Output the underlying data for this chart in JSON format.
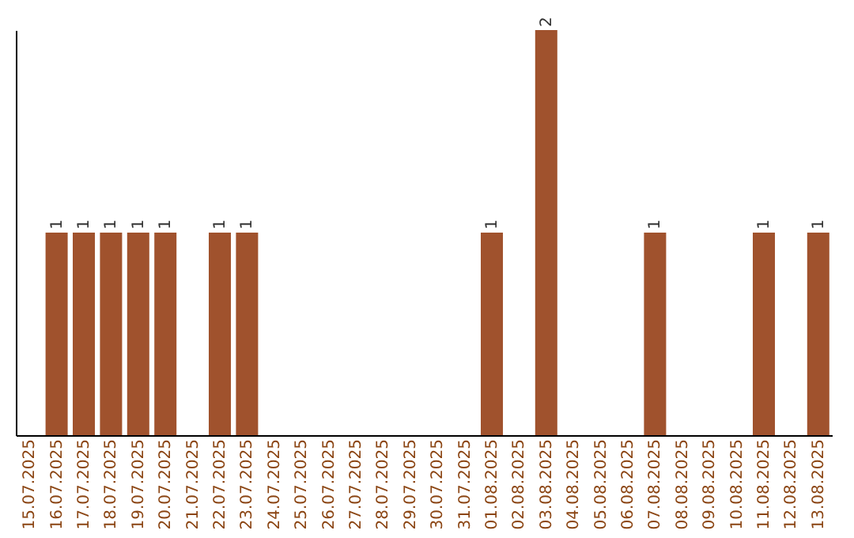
{
  "chart_data": {
    "type": "bar",
    "categories": [
      "15.07.2025",
      "16.07.2025",
      "17.07.2025",
      "18.07.2025",
      "19.07.2025",
      "20.07.2025",
      "21.07.2025",
      "22.07.2025",
      "23.07.2025",
      "24.07.2025",
      "25.07.2025",
      "26.07.2025",
      "27.07.2025",
      "28.07.2025",
      "29.07.2025",
      "30.07.2025",
      "31.07.2025",
      "01.08.2025",
      "02.08.2025",
      "03.08.2025",
      "04.08.2025",
      "05.08.2025",
      "06.08.2025",
      "07.08.2025",
      "08.08.2025",
      "09.08.2025",
      "10.08.2025",
      "11.08.2025",
      "12.08.2025",
      "13.08.2025"
    ],
    "values": [
      0,
      1,
      1,
      1,
      1,
      1,
      0,
      1,
      1,
      0,
      0,
      0,
      0,
      0,
      0,
      0,
      0,
      1,
      0,
      2,
      0,
      0,
      0,
      1,
      0,
      0,
      0,
      1,
      0,
      1
    ],
    "value_labels": [
      null,
      "1",
      "1",
      "1",
      "1",
      "1",
      null,
      "1",
      "1",
      null,
      null,
      null,
      null,
      null,
      null,
      null,
      null,
      "1",
      null,
      "2",
      null,
      null,
      null,
      "1",
      null,
      null,
      null,
      "1",
      null,
      "1"
    ],
    "color": "#a0522d",
    "tick_labels": "x"
  }
}
